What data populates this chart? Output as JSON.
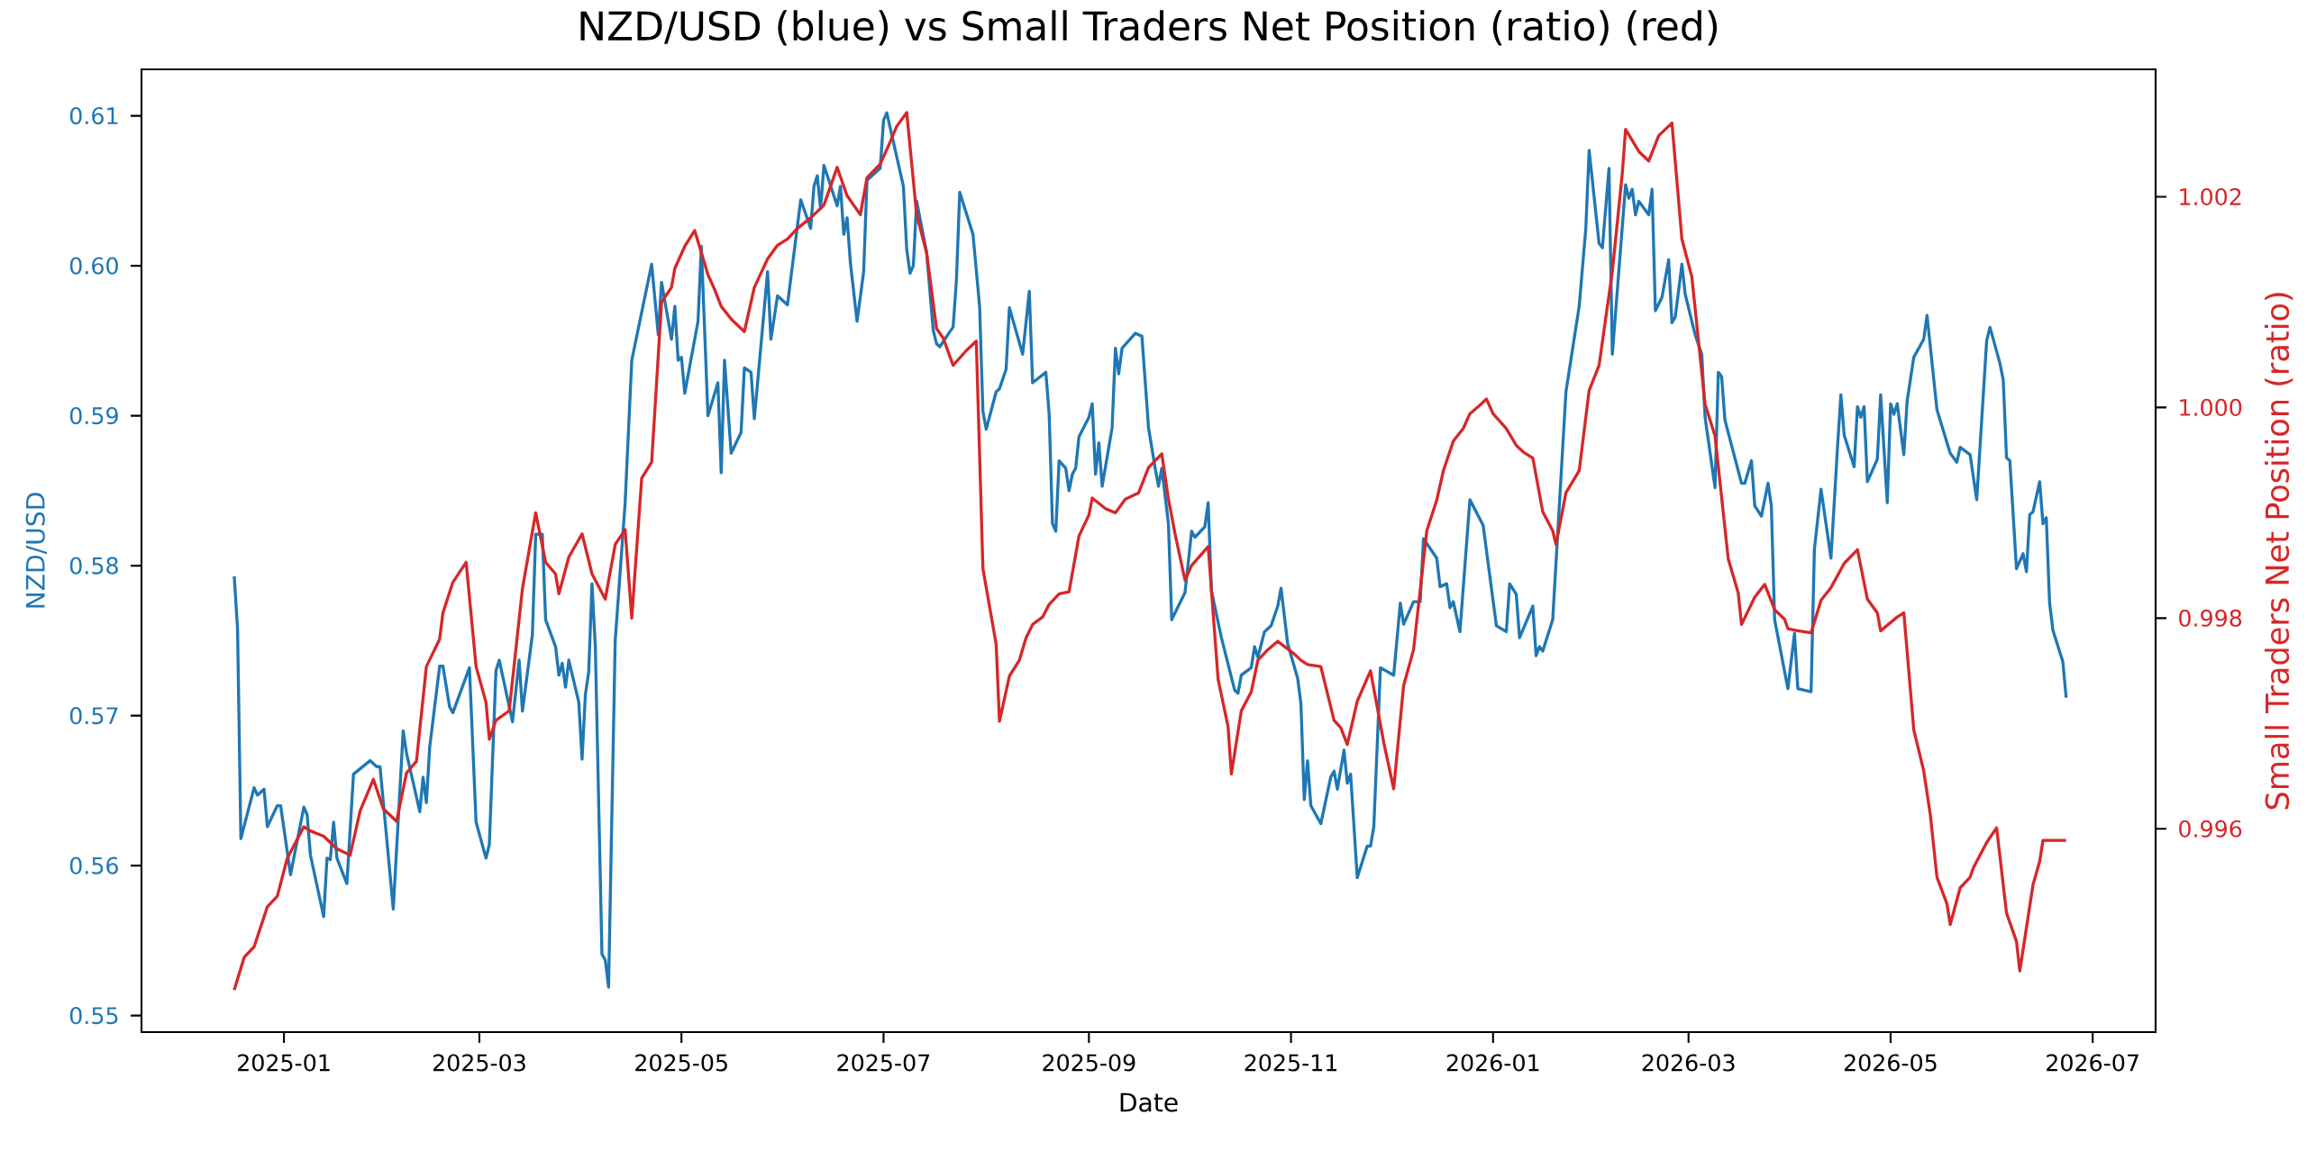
{
  "chart_data": {
    "type": "line",
    "title": "NZD/USD (blue) vs Small Traders Net Position (ratio) (red)",
    "xlabel": "Date",
    "ylabel": "NZD/USD",
    "y2label": "Small Traders Net Position (ratio)",
    "xlim": [
      "2024-11-19",
      "2026-07-20"
    ],
    "xticks": [
      "2025-01",
      "2025-03",
      "2025-05",
      "2025-07",
      "2025-09",
      "2025-11",
      "2026-01",
      "2026-03",
      "2026-05",
      "2026-07"
    ],
    "ylim": [
      0.5489,
      0.6131
    ],
    "yticks": [
      0.55,
      0.56,
      0.57,
      0.58,
      0.59,
      {
        "value": 0.6,
        "label": "0.60"
      },
      0.61
    ],
    "y2lim": [
      0.99407,
      1.00321
    ],
    "y2ticks": [
      0.996,
      0.998,
      {
        "value": 1.0,
        "label": "1.000"
      },
      1.002
    ],
    "series": [
      {
        "color": "#1f77b4",
        "axis": "y",
        "x": [
          "2024-12-17",
          "2024-12-18",
          "2024-12-19",
          "2024-12-23",
          "2024-12-24",
          "2024-12-26",
          "2024-12-27",
          "2024-12-30",
          "2024-12-31",
          "2025-01-03",
          "2025-01-07",
          "2025-01-08",
          "2025-01-09",
          "2025-01-13",
          "2025-01-14",
          "2025-01-15",
          "2025-01-16",
          "2025-01-17",
          "2025-01-20",
          "2025-01-22",
          "2025-01-27",
          "2025-01-29",
          "2025-01-30",
          "2025-02-03",
          "2025-02-06",
          "2025-02-07",
          "2025-02-11",
          "2025-02-12",
          "2025-02-13",
          "2025-02-14",
          "2025-02-17",
          "2025-02-18",
          "2025-02-20",
          "2025-02-21",
          "2025-02-26",
          "2025-02-28",
          "2025-03-03",
          "2025-03-04",
          "2025-03-06",
          "2025-03-07",
          "2025-03-11",
          "2025-03-13",
          "2025-03-14",
          "2025-03-17",
          "2025-03-18",
          "2025-03-20",
          "2025-03-21",
          "2025-03-24",
          "2025-03-25",
          "2025-03-26",
          "2025-03-27",
          "2025-03-28",
          "2025-03-31",
          "2025-04-01",
          "2025-04-02",
          "2025-04-03",
          "2025-04-04",
          "2025-04-05",
          "2025-04-07",
          "2025-04-08",
          "2025-04-09",
          "2025-04-11",
          "2025-04-14",
          "2025-04-16",
          "2025-04-22",
          "2025-04-24",
          "2025-04-25",
          "2025-04-28",
          "2025-04-29",
          "2025-04-30",
          "2025-05-01",
          "2025-05-02",
          "2025-05-06",
          "2025-05-07",
          "2025-05-09",
          "2025-05-12",
          "2025-05-13",
          "2025-05-14",
          "2025-05-16",
          "2025-05-19",
          "2025-05-20",
          "2025-05-22",
          "2025-05-23",
          "2025-05-27",
          "2025-05-28",
          "2025-05-30",
          "2025-06-02",
          "2025-06-06",
          "2025-06-09",
          "2025-06-10",
          "2025-06-11",
          "2025-06-12",
          "2025-06-13",
          "2025-06-17",
          "2025-06-18",
          "2025-06-19",
          "2025-06-20",
          "2025-06-21",
          "2025-06-23",
          "2025-06-25",
          "2025-06-26",
          "2025-06-30",
          "2025-07-01",
          "2025-07-02",
          "2025-07-07",
          "2025-07-08",
          "2025-07-09",
          "2025-07-10",
          "2025-07-11",
          "2025-07-14",
          "2025-07-16",
          "2025-07-17",
          "2025-07-18",
          "2025-07-21",
          "2025-07-22",
          "2025-07-23",
          "2025-07-24",
          "2025-07-28",
          "2025-07-30",
          "2025-07-31",
          "2025-08-01",
          "2025-08-04",
          "2025-08-05",
          "2025-08-07",
          "2025-08-08",
          "2025-08-12",
          "2025-08-14",
          "2025-08-15",
          "2025-08-19",
          "2025-08-20",
          "2025-08-21",
          "2025-08-22",
          "2025-08-23",
          "2025-08-25",
          "2025-08-26",
          "2025-08-27",
          "2025-08-28",
          "2025-08-29",
          "2025-09-01",
          "2025-09-02",
          "2025-09-03",
          "2025-09-04",
          "2025-09-05",
          "2025-09-08",
          "2025-09-09",
          "2025-09-10",
          "2025-09-11",
          "2025-09-15",
          "2025-09-17",
          "2025-09-19",
          "2025-09-21",
          "2025-09-22",
          "2025-09-23",
          "2025-09-25",
          "2025-09-26",
          "2025-09-30",
          "2025-10-02",
          "2025-10-03",
          "2025-10-06",
          "2025-10-07",
          "2025-10-08",
          "2025-10-11",
          "2025-10-15",
          "2025-10-16",
          "2025-10-17",
          "2025-10-20",
          "2025-10-21",
          "2025-10-22",
          "2025-10-24",
          "2025-10-26",
          "2025-10-28",
          "2025-10-29",
          "2025-10-31",
          "2025-11-03",
          "2025-11-04",
          "2025-11-05",
          "2025-11-06",
          "2025-11-07",
          "2025-11-10",
          "2025-11-13",
          "2025-11-14",
          "2025-11-15",
          "2025-11-17",
          "2025-11-18",
          "2025-11-19",
          "2025-11-21",
          "2025-11-24",
          "2025-11-25",
          "2025-11-26",
          "2025-11-28",
          "2025-12-02",
          "2025-12-04",
          "2025-12-05",
          "2025-12-08",
          "2025-12-10",
          "2025-12-11",
          "2025-12-15",
          "2025-12-16",
          "2025-12-18",
          "2025-12-19",
          "2025-12-20",
          "2025-12-22",
          "2025-12-25",
          "2025-12-29",
          "2026-01-02",
          "2026-01-05",
          "2026-01-06",
          "2026-01-08",
          "2026-01-09",
          "2026-01-13",
          "2026-01-14",
          "2026-01-15",
          "2026-01-16",
          "2026-01-19",
          "2026-01-23",
          "2026-01-27",
          "2026-01-29",
          "2026-01-30",
          "2026-02-02",
          "2026-02-03",
          "2026-02-05",
          "2026-02-06",
          "2026-02-10",
          "2026-02-11",
          "2026-02-12",
          "2026-02-13",
          "2026-02-14",
          "2026-02-17",
          "2026-02-18",
          "2026-02-19",
          "2026-02-21",
          "2026-02-23",
          "2026-02-24",
          "2026-02-25",
          "2026-02-27",
          "2026-02-28",
          "2026-03-03",
          "2026-03-05",
          "2026-03-06",
          "2026-03-09",
          "2026-03-10",
          "2026-03-11",
          "2026-03-12",
          "2026-03-17",
          "2026-03-18",
          "2026-03-20",
          "2026-03-21",
          "2026-03-23",
          "2026-03-25",
          "2026-03-26",
          "2026-03-27",
          "2026-03-31",
          "2026-04-02",
          "2026-04-03",
          "2026-04-07",
          "2026-04-08",
          "2026-04-10",
          "2026-04-13",
          "2026-04-15",
          "2026-04-16",
          "2026-04-17",
          "2026-04-20",
          "2026-04-21",
          "2026-04-22",
          "2026-04-23",
          "2026-04-24",
          "2026-04-27",
          "2026-04-28",
          "2026-04-30",
          "2026-05-01",
          "2026-05-02",
          "2026-05-03",
          "2026-05-05",
          "2026-05-06",
          "2026-05-08",
          "2026-05-11",
          "2026-05-12",
          "2026-05-15",
          "2026-05-19",
          "2026-05-21",
          "2026-05-22",
          "2026-05-25",
          "2026-05-27",
          "2026-05-30",
          "2026-05-31",
          "2026-06-03",
          "2026-06-04",
          "2026-06-05",
          "2026-06-06",
          "2026-06-08",
          "2026-06-10",
          "2026-06-11",
          "2026-06-12",
          "2026-06-13",
          "2026-06-15",
          "2026-06-16",
          "2026-06-17",
          "2026-06-18",
          "2026-06-19",
          "2026-06-22",
          "2026-06-23"
        ],
        "values": [
          0.5793,
          0.5758,
          0.5618,
          0.5652,
          0.5647,
          0.5651,
          0.5626,
          0.564,
          0.564,
          0.5594,
          0.5639,
          0.5634,
          0.5607,
          0.5566,
          0.5605,
          0.5604,
          0.5629,
          0.5605,
          0.5588,
          0.5661,
          0.567,
          0.5666,
          0.5666,
          0.5571,
          0.569,
          0.5675,
          0.5636,
          0.5659,
          0.5642,
          0.5679,
          0.5733,
          0.5733,
          0.5706,
          0.5702,
          0.5732,
          0.5629,
          0.5605,
          0.5614,
          0.573,
          0.5737,
          0.5696,
          0.5737,
          0.5703,
          0.5754,
          0.5821,
          0.5821,
          0.5764,
          0.5746,
          0.5727,
          0.5735,
          0.5719,
          0.5737,
          0.5709,
          0.5671,
          0.5714,
          0.5729,
          0.5788,
          0.5746,
          0.5541,
          0.5537,
          0.5519,
          0.575,
          0.5842,
          0.5937,
          0.6001,
          0.5954,
          0.5989,
          0.5951,
          0.5973,
          0.5937,
          0.5939,
          0.5915,
          0.5963,
          0.6013,
          0.59,
          0.5922,
          0.5862,
          0.5937,
          0.5875,
          0.5889,
          0.5932,
          0.5929,
          0.5898,
          0.5996,
          0.5951,
          0.598,
          0.5974,
          0.6044,
          0.6025,
          0.6053,
          0.606,
          0.6038,
          0.6067,
          0.604,
          0.6053,
          0.6021,
          0.6032,
          0.6002,
          0.5963,
          0.5996,
          0.6057,
          0.6065,
          0.6097,
          0.6102,
          0.6053,
          0.6011,
          0.5995,
          0.6,
          0.6043,
          0.6009,
          0.5957,
          0.5948,
          0.5946,
          0.5956,
          0.5959,
          0.599,
          0.6049,
          0.6021,
          0.5973,
          0.5903,
          0.5891,
          0.5916,
          0.5918,
          0.5931,
          0.5972,
          0.5941,
          0.5983,
          0.5922,
          0.5929,
          0.5901,
          0.5828,
          0.5823,
          0.587,
          0.5865,
          0.585,
          0.5861,
          0.5865,
          0.5886,
          0.5899,
          0.5908,
          0.5861,
          0.5882,
          0.5853,
          0.5892,
          0.5945,
          0.5928,
          0.5945,
          0.5955,
          0.5953,
          0.5892,
          0.5865,
          0.5853,
          0.5865,
          0.5828,
          0.5764,
          0.5782,
          0.5823,
          0.5819,
          0.5826,
          0.5842,
          0.5783,
          0.5752,
          0.5717,
          0.5715,
          0.5727,
          0.5732,
          0.5746,
          0.5739,
          0.5756,
          0.576,
          0.5773,
          0.5785,
          0.5748,
          0.5725,
          0.5708,
          0.5644,
          0.567,
          0.564,
          0.5628,
          0.5659,
          0.5663,
          0.5651,
          0.5677,
          0.5655,
          0.5661,
          0.5592,
          0.5613,
          0.5613,
          0.5626,
          0.5732,
          0.5727,
          0.5775,
          0.5761,
          0.5776,
          0.5776,
          0.5818,
          0.5805,
          0.5786,
          0.5788,
          0.5772,
          0.5776,
          0.5756,
          0.5844,
          0.5827,
          0.576,
          0.5756,
          0.5788,
          0.5781,
          0.5752,
          0.5773,
          0.574,
          0.5746,
          0.5743,
          0.5764,
          0.5916,
          0.5973,
          0.6025,
          0.6077,
          0.6015,
          0.6012,
          0.6065,
          0.5941,
          0.6054,
          0.6045,
          0.6051,
          0.6034,
          0.6043,
          0.6034,
          0.6051,
          0.597,
          0.5979,
          0.6004,
          0.5962,
          0.5966,
          0.6001,
          0.5981,
          0.5954,
          0.5941,
          0.5899,
          0.5852,
          0.5929,
          0.5926,
          0.5897,
          0.5855,
          0.5855,
          0.587,
          0.584,
          0.5833,
          0.5855,
          0.584,
          0.5764,
          0.5718,
          0.5755,
          0.5718,
          0.5716,
          0.5811,
          0.5851,
          0.5805,
          0.588,
          0.5914,
          0.5887,
          0.5866,
          0.5906,
          0.5899,
          0.5906,
          0.5856,
          0.5871,
          0.5914,
          0.5842,
          0.5908,
          0.5901,
          0.5908,
          0.5874,
          0.591,
          0.5939,
          0.5951,
          0.5967,
          0.5904,
          0.5875,
          0.5869,
          0.5879,
          0.5874,
          0.5844,
          0.595,
          0.5959,
          0.5935,
          0.5924,
          0.5872,
          0.587,
          0.5798,
          0.5808,
          0.5796,
          0.5834,
          0.5836,
          0.5856,
          0.5828,
          0.5832,
          0.5775,
          0.5757,
          0.5736,
          0.5712
        ]
      },
      {
        "color": "#d62728",
        "axis": "y2",
        "x": [
          "2024-12-17",
          "2024-12-20",
          "2024-12-23",
          "2024-12-27",
          "2024-12-30",
          "2025-01-02",
          "2025-01-07",
          "2025-01-09",
          "2025-01-13",
          "2025-01-17",
          "2025-01-21",
          "2025-01-24",
          "2025-01-28",
          "2025-01-31",
          "2025-02-04",
          "2025-02-07",
          "2025-02-10",
          "2025-02-13",
          "2025-02-17",
          "2025-02-18",
          "2025-02-21",
          "2025-02-25",
          "2025-02-28",
          "2025-03-03",
          "2025-03-04",
          "2025-03-06",
          "2025-03-10",
          "2025-03-14",
          "2025-03-18",
          "2025-03-21",
          "2025-03-24",
          "2025-03-25",
          "2025-03-28",
          "2025-04-01",
          "2025-04-04",
          "2025-04-08",
          "2025-04-11",
          "2025-04-14",
          "2025-04-16",
          "2025-04-19",
          "2025-04-22",
          "2025-04-25",
          "2025-04-28",
          "2025-04-29",
          "2025-05-02",
          "2025-05-05",
          "2025-05-09",
          "2025-05-11",
          "2025-05-13",
          "2025-05-16",
          "2025-05-20",
          "2025-05-23",
          "2025-05-27",
          "2025-05-30",
          "2025-06-02",
          "2025-06-05",
          "2025-06-09",
          "2025-06-13",
          "2025-06-17",
          "2025-06-20",
          "2025-06-24",
          "2025-06-26",
          "2025-06-30",
          "2025-07-03",
          "2025-07-05",
          "2025-07-08",
          "2025-07-11",
          "2025-07-14",
          "2025-07-17",
          "2025-07-19",
          "2025-07-22",
          "2025-07-26",
          "2025-07-29",
          "2025-07-31",
          "2025-08-04",
          "2025-08-05",
          "2025-08-08",
          "2025-08-11",
          "2025-08-13",
          "2025-08-15",
          "2025-08-18",
          "2025-08-20",
          "2025-08-23",
          "2025-08-26",
          "2025-08-29",
          "2025-09-01",
          "2025-09-02",
          "2025-09-06",
          "2025-09-09",
          "2025-09-12",
          "2025-09-16",
          "2025-09-19",
          "2025-09-23",
          "2025-09-25",
          "2025-09-27",
          "2025-09-30",
          "2025-10-02",
          "2025-10-07",
          "2025-10-10",
          "2025-10-13",
          "2025-10-14",
          "2025-10-17",
          "2025-10-20",
          "2025-10-22",
          "2025-10-25",
          "2025-10-28",
          "2025-11-02",
          "2025-11-04",
          "2025-11-06",
          "2025-11-10",
          "2025-11-14",
          "2025-11-16",
          "2025-11-18",
          "2025-11-21",
          "2025-11-25",
          "2025-11-29",
          "2025-12-02",
          "2025-12-05",
          "2025-12-08",
          "2025-12-12",
          "2025-12-15",
          "2025-12-17",
          "2025-12-20",
          "2025-12-23",
          "2025-12-25",
          "2025-12-28",
          "2025-12-30",
          "2026-01-01",
          "2026-01-05",
          "2026-01-08",
          "2026-01-10",
          "2026-01-13",
          "2026-01-16",
          "2026-01-19",
          "2026-01-20",
          "2026-01-23",
          "2026-01-27",
          "2026-01-30",
          "2026-02-02",
          "2026-02-06",
          "2026-02-09",
          "2026-02-10",
          "2026-02-14",
          "2026-02-17",
          "2026-02-20",
          "2026-02-24",
          "2026-02-27",
          "2026-03-02",
          "2026-03-06",
          "2026-03-09",
          "2026-03-13",
          "2026-03-16",
          "2026-03-17",
          "2026-03-21",
          "2026-03-24",
          "2026-03-27",
          "2026-03-30",
          "2026-03-31",
          "2026-04-03",
          "2026-04-07",
          "2026-04-10",
          "2026-04-13",
          "2026-04-17",
          "2026-04-21",
          "2026-04-24",
          "2026-04-27",
          "2026-04-28",
          "2026-05-03",
          "2026-05-05",
          "2026-05-08",
          "2026-05-11",
          "2026-05-13",
          "2026-05-15",
          "2026-05-18",
          "2026-05-19",
          "2026-05-22",
          "2026-05-25",
          "2026-05-26",
          "2026-05-30",
          "2026-06-02",
          "2026-06-05",
          "2026-06-08",
          "2026-06-09",
          "2026-06-13",
          "2026-06-15",
          "2026-06-16",
          "2026-06-23"
        ],
        "values": [
          0.99447,
          0.99478,
          0.99488,
          0.99526,
          0.99536,
          0.99572,
          0.99602,
          0.99598,
          0.99593,
          0.99581,
          0.99575,
          0.99617,
          0.99647,
          0.99619,
          0.99607,
          0.99653,
          0.99664,
          0.99754,
          0.9978,
          0.99805,
          0.99834,
          0.99853,
          0.99754,
          0.9972,
          0.99685,
          0.99703,
          0.99712,
          0.99828,
          0.999,
          0.99853,
          0.99842,
          0.99823,
          0.99858,
          0.9988,
          0.99842,
          0.99818,
          0.9987,
          0.99884,
          0.998,
          0.99933,
          0.99948,
          1.001,
          1.00114,
          1.00132,
          1.00153,
          1.00168,
          1.00126,
          1.00112,
          1.00096,
          1.00084,
          1.00072,
          1.00114,
          1.00141,
          1.00154,
          1.0016,
          1.0017,
          1.0018,
          1.00192,
          1.00228,
          1.00201,
          1.00183,
          1.00218,
          1.00231,
          1.00252,
          1.00267,
          1.0028,
          1.00183,
          1.00147,
          1.00075,
          1.00066,
          1.0004,
          1.00054,
          1.00063,
          0.99847,
          0.99775,
          0.99702,
          0.99745,
          0.9976,
          0.99781,
          0.99794,
          0.99801,
          0.99813,
          0.99823,
          0.99825,
          0.99878,
          0.99898,
          0.99914,
          0.99904,
          0.999,
          0.99913,
          0.99919,
          0.99943,
          0.99956,
          0.99913,
          0.9988,
          0.99836,
          0.9985,
          0.99868,
          0.99742,
          0.99697,
          0.99652,
          0.99712,
          0.9973,
          0.9976,
          0.9977,
          0.99778,
          0.99766,
          0.9976,
          0.99756,
          0.99754,
          0.99703,
          0.99696,
          0.9968,
          0.99721,
          0.9975,
          0.99682,
          0.99638,
          0.99736,
          0.9977,
          0.99883,
          0.99912,
          0.9994,
          0.99968,
          0.9998,
          0.99994,
          1.00002,
          1.00008,
          0.99994,
          0.9998,
          0.99964,
          0.99958,
          0.99952,
          0.99901,
          0.99883,
          0.9987,
          0.99919,
          0.9994,
          1.00016,
          1.0004,
          1.00129,
          1.00222,
          1.00264,
          1.00243,
          1.00234,
          1.00258,
          1.0027,
          1.0016,
          1.00124,
          1.00003,
          0.99973,
          0.99856,
          0.99824,
          0.99794,
          0.9982,
          0.99832,
          0.99808,
          0.99799,
          0.9979,
          0.99788,
          0.99786,
          0.99817,
          0.99829,
          0.99852,
          0.99865,
          0.99818,
          0.99805,
          0.99788,
          0.99801,
          0.99805,
          0.99694,
          0.99655,
          0.99613,
          0.99554,
          0.99529,
          0.99509,
          0.99544,
          0.99554,
          0.99563,
          0.99587,
          0.99601,
          0.9952,
          0.99493,
          0.99465,
          0.99547,
          0.99569,
          0.99589,
          0.99589
        ]
      }
    ]
  }
}
